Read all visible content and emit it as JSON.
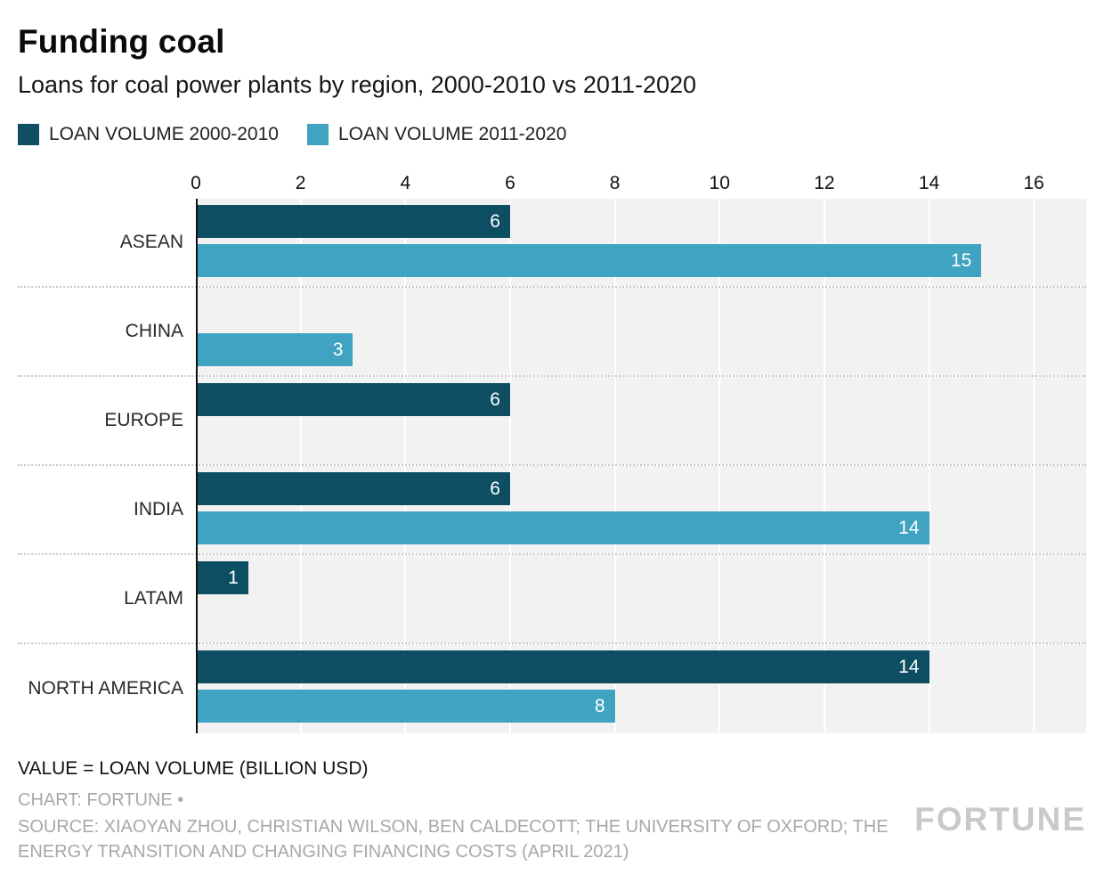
{
  "header": {
    "title": "Funding coal",
    "subtitle": "Loans for coal power plants by region, 2000-2010 vs 2011-2020"
  },
  "chart_data": {
    "type": "bar",
    "orientation": "horizontal",
    "title": "Funding coal",
    "subtitle": "Loans for coal power plants by region, 2000-2010 vs 2011-2020",
    "categories": [
      "ASEAN",
      "CHINA",
      "EUROPE",
      "INDIA",
      "LATAM",
      "NORTH AMERICA"
    ],
    "series": [
      {
        "name": "LOAN VOLUME 2000-2010",
        "color": "#0d4e63",
        "values": [
          6,
          0,
          6,
          6,
          1,
          14
        ]
      },
      {
        "name": "LOAN VOLUME 2011-2020",
        "color": "#3fa3c1",
        "values": [
          15,
          3,
          0,
          14,
          0,
          8
        ]
      }
    ],
    "x_ticks": [
      0,
      2,
      4,
      6,
      8,
      10,
      12,
      14,
      16
    ],
    "xlim": [
      0,
      17
    ],
    "xlabel": "",
    "ylabel": "",
    "units": "BILLION USD",
    "grid": "vertical white gridlines on light gray bands",
    "legend_position": "top-left"
  },
  "footer": {
    "value_note": "VALUE = LOAN VOLUME (BILLION USD)",
    "credit": "CHART: FORTUNE •",
    "source": "SOURCE: XIAOYAN ZHOU, CHRISTIAN WILSON, BEN CALDECOTT; THE UNIVERSITY OF OXFORD; THE ENERGY TRANSITION AND CHANGING FINANCING COSTS (APRIL 2021)",
    "logo": "FORTUNE"
  },
  "colors": {
    "series_2000_2010": "#0d4e63",
    "series_2011_2020": "#3fa3c1",
    "band_background": "#f2f2f2",
    "gridline": "#ffffff",
    "separator": "#c9c9c9",
    "muted_text": "#a8a8a8"
  }
}
